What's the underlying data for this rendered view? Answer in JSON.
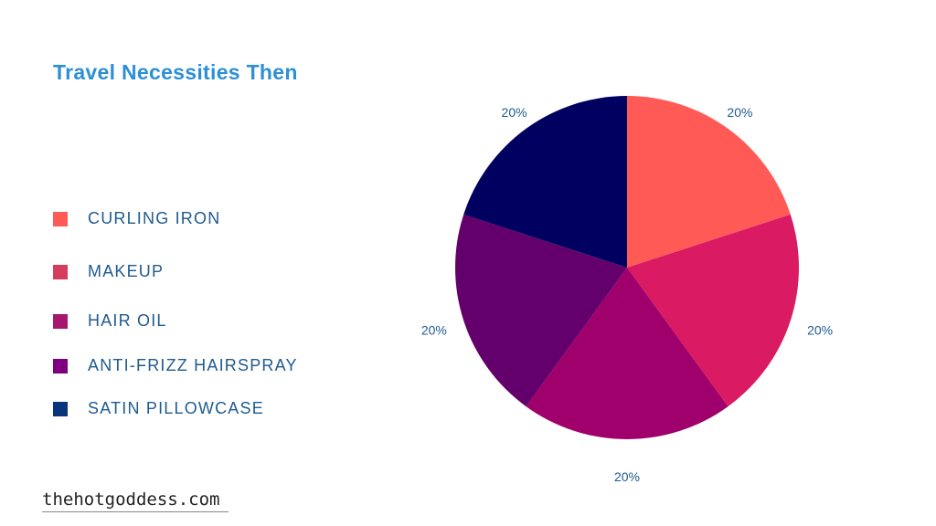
{
  "chart_data": {
    "type": "pie",
    "title": "Travel Necessities Then",
    "categories": [
      "CURLING IRON",
      "MAKEUP",
      "HAIR OIL",
      "ANTI-FRIZZ HAIRSPRAY",
      "SATIN PILLOWCASE"
    ],
    "values": [
      20,
      20,
      20,
      20,
      20
    ],
    "labels": [
      "20%",
      "20%",
      "20%",
      "20%",
      "20%"
    ],
    "slice_colors": [
      "#FF5A55",
      "#DA1A62",
      "#A0006B",
      "#64006B",
      "#000060"
    ],
    "legend_colors": [
      "#FF5A55",
      "#D63C5E",
      "#A8176E",
      "#7E0080",
      "#08347D"
    ],
    "legend": "left"
  },
  "watermark": "thehotgoddess.com"
}
